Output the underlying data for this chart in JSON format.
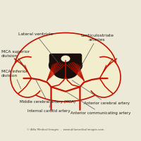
{
  "bg_color": "#ede9d8",
  "brain_color": "#f2edcc",
  "brain_edge_color": "#c41200",
  "ventricle_color": "#1a0f0a",
  "artery_color": "#c41200",
  "label_color": "#1a1a1a",
  "line_color": "#555555",
  "watermark": "© Alila Medical Images  -  www.alilamedicalimages.com",
  "labels": {
    "lateral_ventricle": "Lateral ventricle",
    "lenticulostriate": "Lenticulostriate\narteries",
    "mca_superior": "MCA superior\ndivision",
    "mca_inferior": "MCA inferior\ndivision",
    "middle_cerebral": "Middle cerebral artery (MCA)",
    "internal_carotid": "Internal carotid artery",
    "anterior_cerebral": "Anterior cerebral artery",
    "anterior_communicating": "Anterior communicating artery"
  }
}
